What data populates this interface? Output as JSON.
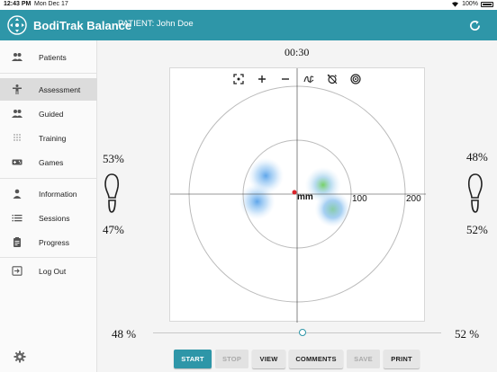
{
  "status_bar": {
    "time": "12:43 PM",
    "date": "Mon Dec 17",
    "battery": "100%"
  },
  "header": {
    "app_title": "BodiTrak Balance",
    "patient": "PATIENT: John Doe",
    "color": "#2e96a8"
  },
  "sidebar": {
    "items": [
      {
        "label": "Patients",
        "icon": "people-icon"
      },
      {
        "label": "Assessment",
        "icon": "person-standing-icon"
      },
      {
        "label": "Guided",
        "icon": "people-icon"
      },
      {
        "label": "Training",
        "icon": "dot-grid-icon"
      },
      {
        "label": "Games",
        "icon": "gamepad-icon"
      },
      {
        "label": "Information",
        "icon": "person-icon"
      },
      {
        "label": "Sessions",
        "icon": "list-icon"
      },
      {
        "label": "Progress",
        "icon": "clipboard-icon"
      },
      {
        "label": "Log Out",
        "icon": "logout-icon"
      }
    ],
    "active": "Assessment"
  },
  "main": {
    "timer": "00:30",
    "plot": {
      "center_label": "mm",
      "ring_labels": [
        "100",
        "200"
      ],
      "toolbar": [
        "fit-icon",
        "zoom-in-icon",
        "zoom-out-icon",
        "trace-icon",
        "alarm-icon",
        "target-icon"
      ],
      "hotspots": [
        {
          "x": -58,
          "y": 34,
          "color": "#5aa8e8"
        },
        {
          "x": -74,
          "y": -14,
          "color": "#5aa8e8"
        },
        {
          "x": 48,
          "y": 17,
          "color": "#7ccf6a"
        },
        {
          "x": 66,
          "y": -28,
          "color": "#72b8c8"
        }
      ]
    },
    "left": {
      "top_pct": "53%",
      "bottom_pct": "47%"
    },
    "right": {
      "top_pct": "48%",
      "bottom_pct": "52%"
    },
    "bottom": {
      "left_pct": "48 %",
      "right_pct": "52 %"
    },
    "buttons": {
      "start": "START",
      "stop": "STOP",
      "view": "VIEW",
      "comments": "COMMENTS",
      "save": "SAVE",
      "print": "PRINT"
    }
  }
}
